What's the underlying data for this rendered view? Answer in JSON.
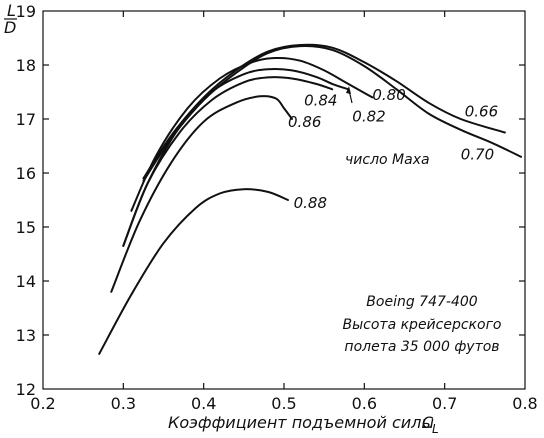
{
  "chart_data": {
    "type": "line",
    "xlabel": "Коэффициент подъемной силы",
    "xlabel_symbol": "C",
    "xlabel_subscript": "L",
    "ylabel_numerator": "L",
    "ylabel_denominator": "D",
    "xlim": [
      0.2,
      0.8
    ],
    "ylim": [
      12,
      19
    ],
    "x_ticks": [
      "0.2",
      "0.3",
      "0.4",
      "0.5",
      "0.6",
      "0.7",
      "0.8"
    ],
    "y_ticks": [
      "12",
      "13",
      "14",
      "15",
      "16",
      "17",
      "18",
      "19"
    ],
    "grid": false,
    "legend_title": "число Маха",
    "annotation_lines": [
      "Boeing 747-400",
      "Высота крейсерского",
      "полета 35 000 футов"
    ],
    "series": [
      {
        "name": "0.66",
        "points": [
          [
            0.325,
            15.9
          ],
          [
            0.36,
            16.7
          ],
          [
            0.4,
            17.4
          ],
          [
            0.44,
            17.9
          ],
          [
            0.48,
            18.25
          ],
          [
            0.52,
            18.37
          ],
          [
            0.56,
            18.32
          ],
          [
            0.6,
            18.05
          ],
          [
            0.64,
            17.7
          ],
          [
            0.68,
            17.3
          ],
          [
            0.72,
            17.0
          ],
          [
            0.775,
            16.75
          ]
        ]
      },
      {
        "name": "0.70",
        "points": [
          [
            0.325,
            15.85
          ],
          [
            0.36,
            16.65
          ],
          [
            0.4,
            17.35
          ],
          [
            0.44,
            17.85
          ],
          [
            0.48,
            18.22
          ],
          [
            0.52,
            18.35
          ],
          [
            0.56,
            18.28
          ],
          [
            0.6,
            17.98
          ],
          [
            0.64,
            17.55
          ],
          [
            0.68,
            17.1
          ],
          [
            0.72,
            16.8
          ],
          [
            0.76,
            16.55
          ],
          [
            0.795,
            16.3
          ]
        ]
      },
      {
        "name": "0.80",
        "points": [
          [
            0.31,
            15.3
          ],
          [
            0.34,
            16.3
          ],
          [
            0.38,
            17.2
          ],
          [
            0.42,
            17.75
          ],
          [
            0.46,
            18.05
          ],
          [
            0.49,
            18.13
          ],
          [
            0.52,
            18.08
          ],
          [
            0.55,
            17.9
          ],
          [
            0.58,
            17.65
          ],
          [
            0.61,
            17.4
          ]
        ]
      },
      {
        "name": "0.82",
        "points": [
          [
            0.3,
            14.65
          ],
          [
            0.33,
            15.8
          ],
          [
            0.37,
            16.85
          ],
          [
            0.41,
            17.5
          ],
          [
            0.45,
            17.83
          ],
          [
            0.48,
            17.92
          ],
          [
            0.51,
            17.9
          ],
          [
            0.54,
            17.78
          ],
          [
            0.56,
            17.65
          ],
          [
            0.58,
            17.55
          ]
        ]
      },
      {
        "name": "0.84",
        "points": [
          [
            0.3,
            14.65
          ],
          [
            0.33,
            15.8
          ],
          [
            0.37,
            16.75
          ],
          [
            0.41,
            17.35
          ],
          [
            0.45,
            17.68
          ],
          [
            0.48,
            17.77
          ],
          [
            0.51,
            17.75
          ],
          [
            0.54,
            17.65
          ],
          [
            0.56,
            17.55
          ]
        ]
      },
      {
        "name": "0.86",
        "points": [
          [
            0.285,
            13.8
          ],
          [
            0.32,
            15.1
          ],
          [
            0.36,
            16.2
          ],
          [
            0.4,
            16.95
          ],
          [
            0.44,
            17.3
          ],
          [
            0.47,
            17.42
          ],
          [
            0.49,
            17.38
          ],
          [
            0.5,
            17.2
          ],
          [
            0.51,
            17.0
          ]
        ]
      },
      {
        "name": "0.88",
        "points": [
          [
            0.27,
            12.65
          ],
          [
            0.31,
            13.75
          ],
          [
            0.35,
            14.7
          ],
          [
            0.39,
            15.35
          ],
          [
            0.42,
            15.62
          ],
          [
            0.45,
            15.7
          ],
          [
            0.48,
            15.65
          ],
          [
            0.505,
            15.5
          ]
        ]
      }
    ]
  }
}
